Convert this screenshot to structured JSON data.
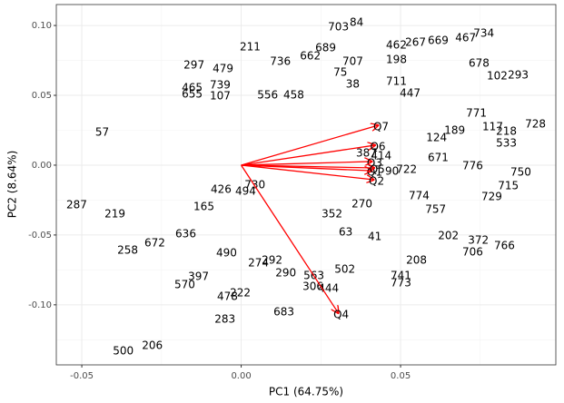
{
  "chart_data": {
    "type": "scatter",
    "x_label": "PC1 (64.75%)",
    "y_label": "PC2 (8.64%)",
    "xlim": [
      -0.058,
      0.0987
    ],
    "ylim": [
      -0.143,
      0.115
    ],
    "xticks": [
      {
        "value": -0.05,
        "label": "-0.05"
      },
      {
        "value": 0,
        "label": "0.00"
      },
      {
        "value": 0.05,
        "label": "0.05"
      }
    ],
    "yticks": [
      {
        "value": -0.1,
        "label": "-0.10"
      },
      {
        "value": -0.05,
        "label": "-0.05"
      },
      {
        "value": 0,
        "label": "0.00"
      },
      {
        "value": 0.05,
        "label": "0.05"
      },
      {
        "value": 0.1,
        "label": "0.10"
      }
    ],
    "xminor": [
      -0.025,
      0.025,
      0.075
    ],
    "yminor": [
      -0.125,
      -0.075,
      -0.025,
      0.025,
      0.075
    ],
    "grid": true,
    "points": {
      "color": "#000000",
      "labels": [
        "703",
        "84",
        "689",
        "462",
        "267",
        "669",
        "467",
        "734",
        "198",
        "678",
        "293",
        "102",
        "711",
        "447",
        "771",
        "117",
        "218",
        "728",
        "211",
        "297",
        "479",
        "736",
        "662",
        "465",
        "739",
        "107",
        "556",
        "458",
        "655",
        "707",
        "75",
        "38",
        "124",
        "189",
        "671",
        "776",
        "533",
        "750",
        "715",
        "729",
        "414",
        "387",
        "722",
        "90",
        "774",
        "757",
        "202",
        "372",
        "766",
        "706",
        "208",
        "741",
        "773",
        "502",
        "563",
        "444",
        "306",
        "290",
        "683",
        "283",
        "478",
        "222",
        "397",
        "570",
        "500",
        "206",
        "258",
        "63",
        "41",
        "270",
        "352",
        "292",
        "274",
        "490",
        "494",
        "730",
        "57",
        "219",
        "287",
        "672",
        "636",
        "165",
        "426"
      ],
      "x": [
        0.0305,
        0.0362,
        0.0265,
        0.0487,
        0.0547,
        0.0618,
        0.0704,
        0.0761,
        0.0487,
        0.0746,
        0.0869,
        0.0803,
        0.0487,
        0.053,
        0.0738,
        0.0789,
        0.0832,
        0.0923,
        0.0028,
        -0.0148,
        -0.0057,
        0.0123,
        0.0217,
        -0.0154,
        -0.0066,
        -0.0066,
        0.0083,
        0.0165,
        -0.0154,
        0.035,
        0.0311,
        0.035,
        0.0613,
        0.067,
        0.0618,
        0.0726,
        0.0832,
        0.0877,
        0.0838,
        0.0786,
        0.0439,
        0.0393,
        0.0519,
        0.0473,
        0.0558,
        0.061,
        0.065,
        0.0744,
        0.0826,
        0.0726,
        0.055,
        0.0501,
        0.0501,
        0.0325,
        0.0228,
        0.0274,
        0.0225,
        0.014,
        0.0134,
        -0.0051,
        -0.0043,
        -0.0003,
        -0.0134,
        -0.0177,
        -0.037,
        -0.0279,
        -0.0356,
        0.0328,
        0.0419,
        0.0379,
        0.0285,
        0.0097,
        0.0054,
        -0.0046,
        0.0014,
        0.0043,
        -0.0436,
        -0.0396,
        -0.0516,
        -0.0271,
        -0.0174,
        -0.0117,
        -0.0063
      ],
      "values": [
        0.0987,
        0.102,
        0.0838,
        0.0857,
        0.0877,
        0.089,
        0.0909,
        0.0942,
        0.0753,
        0.0727,
        0.0643,
        0.0636,
        0.0597,
        0.0513,
        0.037,
        0.0273,
        0.024,
        0.0292,
        0.0844,
        0.0714,
        0.0688,
        0.074,
        0.0779,
        0.0552,
        0.0571,
        0.0494,
        0.05,
        0.05,
        0.0506,
        0.074,
        0.0662,
        0.0578,
        0.0195,
        0.0247,
        0.0052,
        -0.0006,
        0.0156,
        -0.0052,
        -0.0149,
        -0.0227,
        0.0065,
        0.0084,
        -0.0032,
        -0.0045,
        -0.0221,
        -0.0318,
        -0.0506,
        -0.0539,
        -0.0578,
        -0.0623,
        -0.0682,
        -0.0792,
        -0.0844,
        -0.0747,
        -0.0792,
        -0.0883,
        -0.087,
        -0.0773,
        -0.1052,
        -0.1104,
        -0.0942,
        -0.0916,
        -0.0799,
        -0.0857,
        -0.1331,
        -0.1292,
        -0.061,
        -0.048,
        -0.0513,
        -0.0279,
        -0.0351,
        -0.0682,
        -0.0701,
        -0.063,
        -0.0188,
        -0.0143,
        0.0234,
        -0.0351,
        -0.0286,
        -0.0558,
        -0.0494,
        -0.0299,
        -0.0175
      ]
    },
    "loadings": {
      "color": "#ff0000",
      "names": [
        "Q1",
        "Q2",
        "Q3",
        "Q4",
        "Q5",
        "Q6",
        "Q7"
      ],
      "x": [
        0.041,
        0.0416,
        0.041,
        0.0305,
        0.0418,
        0.042,
        0.043
      ],
      "values": [
        -0.004,
        -0.0104,
        0.0026,
        -0.106,
        -0.002,
        0.0143,
        0.0286
      ]
    }
  }
}
